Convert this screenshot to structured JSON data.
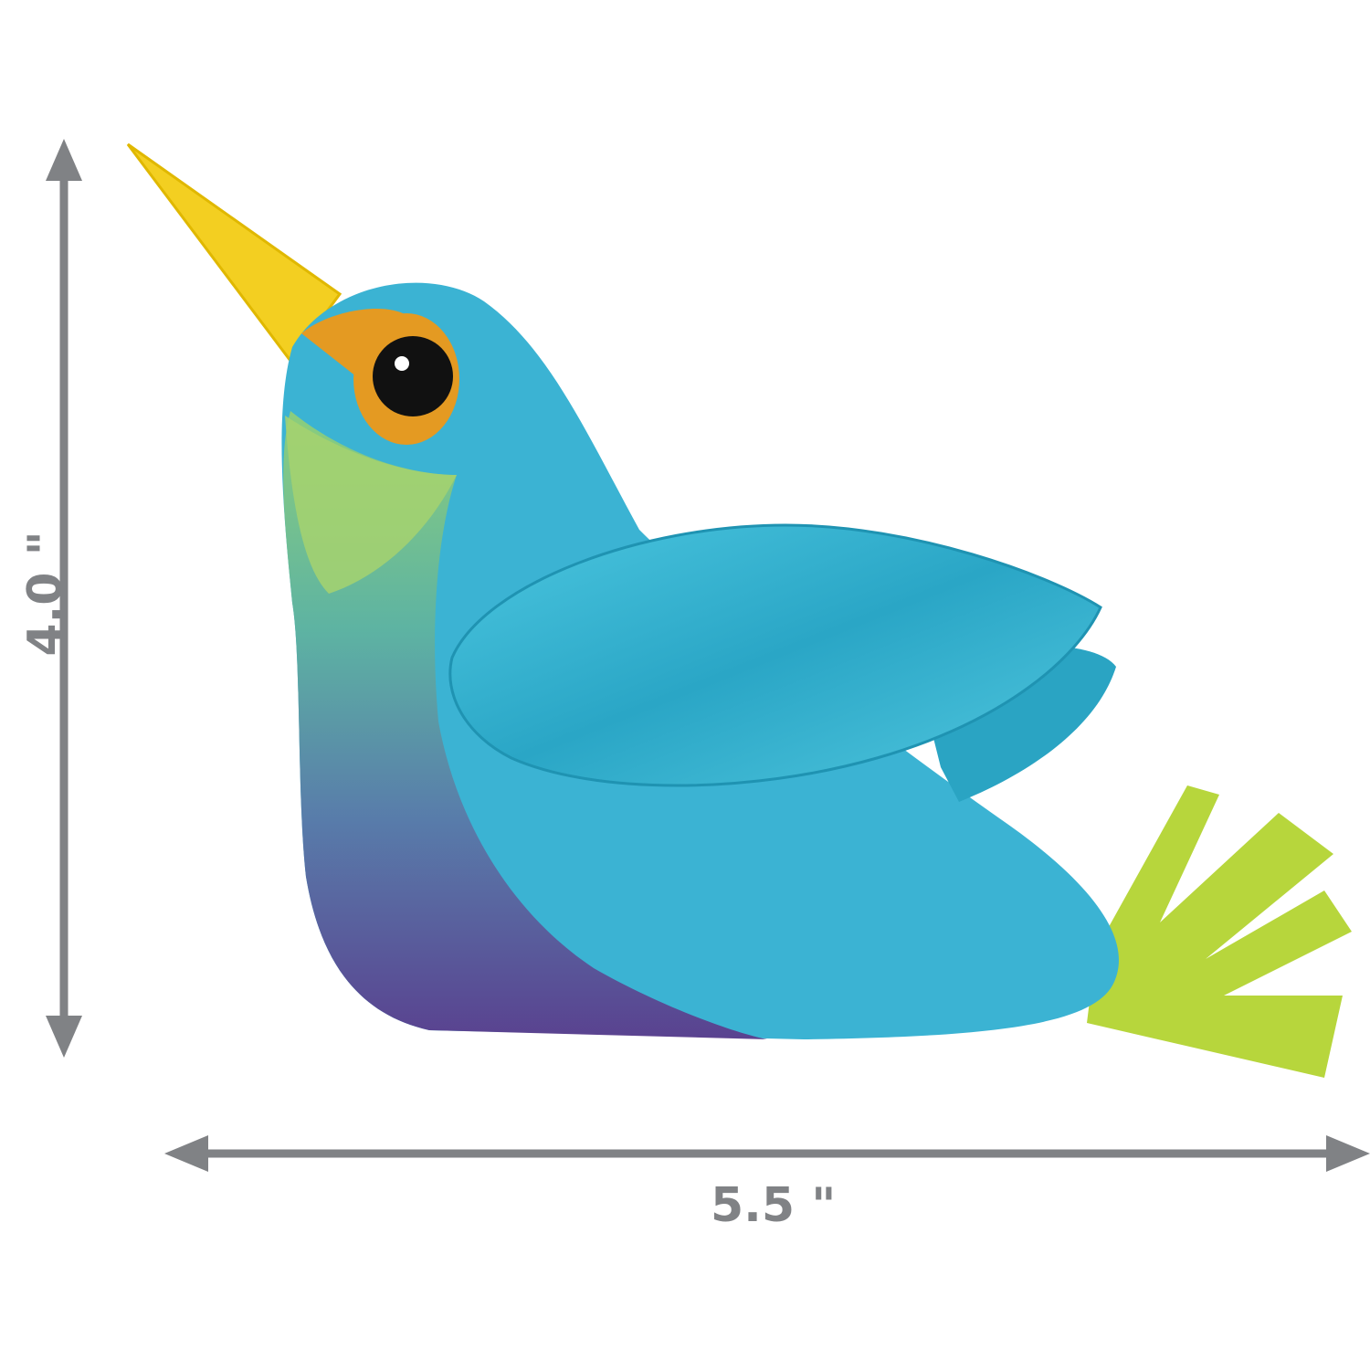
{
  "dimensions": {
    "height_label": "4.0 \"",
    "width_label": "5.5 \""
  },
  "colors": {
    "arrow": "#808285",
    "body": "#3bb3d3",
    "wing": "#2fb0cc",
    "beak": "#f3cf21",
    "eye_ring": "#e49a22",
    "throat": "#9fcf6a",
    "belly": "#5a3f8c",
    "tail": "#b7d63c"
  }
}
